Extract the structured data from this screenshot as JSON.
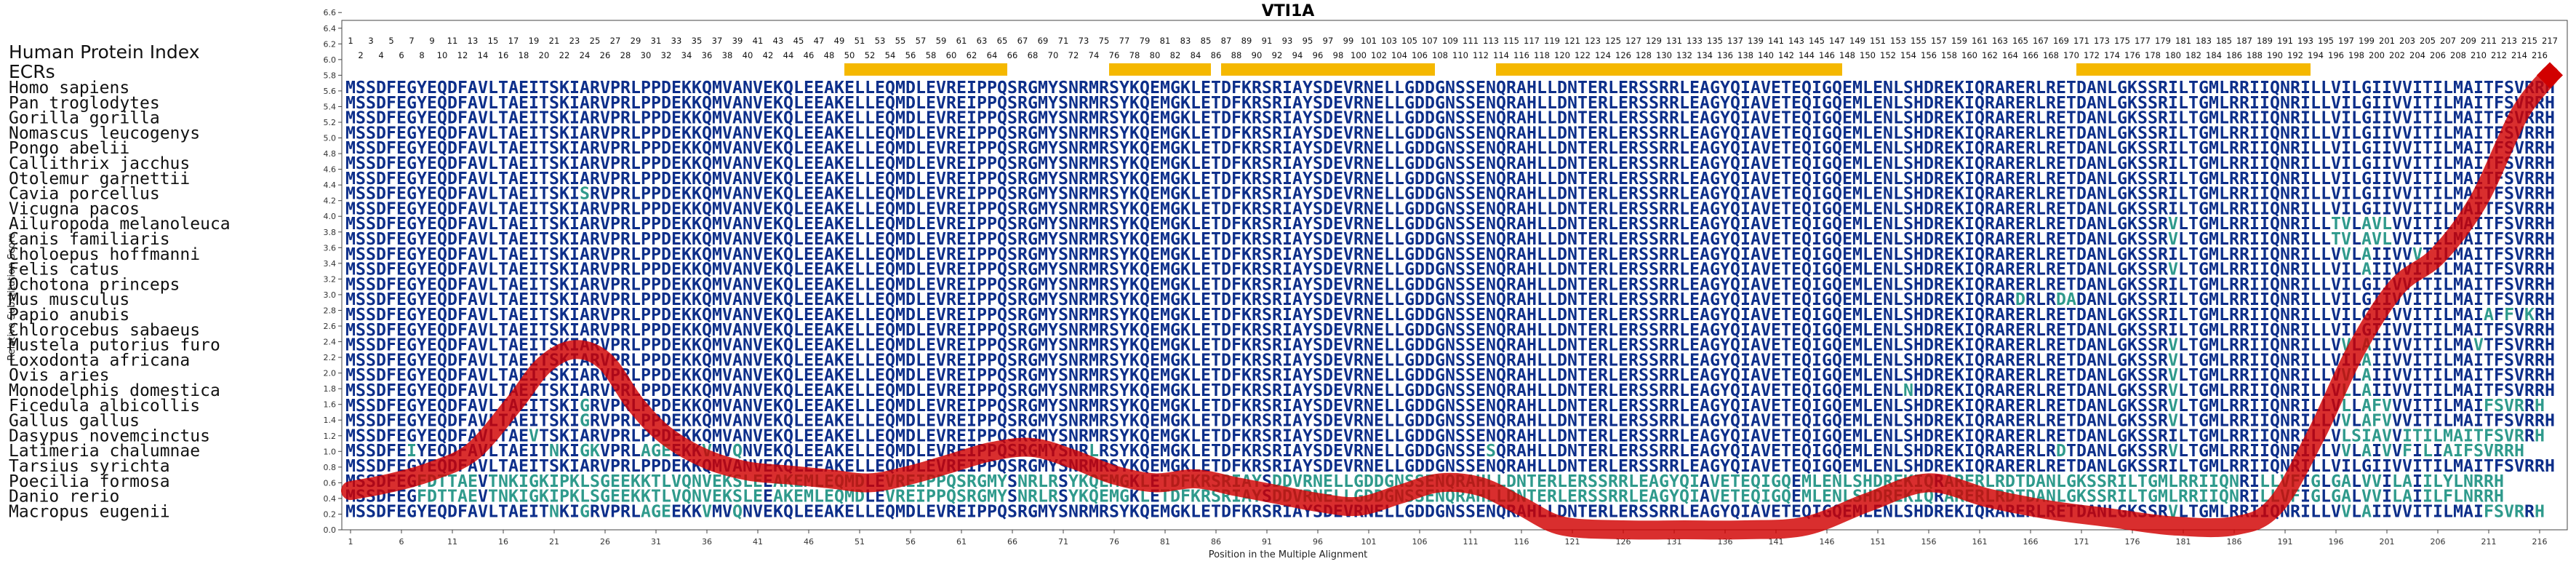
{
  "chart_data": {
    "type": "line",
    "title": "VTI1A",
    "xlabel": "Position in the Multiple Alignment",
    "ylabel": "Relative Substitution Score",
    "xlim": [
      0,
      219
    ],
    "ylim": [
      0,
      6.5
    ],
    "yticks": [
      "0.0",
      "0.2",
      "0.4",
      "0.6",
      "0.8",
      "1.0",
      "1.2",
      "1.4",
      "1.6",
      "1.8",
      "2.0",
      "2.2",
      "2.4",
      "2.6",
      "2.8",
      "3.0",
      "3.2",
      "3.4",
      "3.6",
      "3.8",
      "4.0",
      "4.2",
      "4.4",
      "4.6",
      "4.8",
      "5.0",
      "5.2",
      "5.4",
      "5.6",
      "5.8",
      "6.0",
      "6.2",
      "6.4",
      "6.6"
    ],
    "xticks": [
      1,
      6,
      11,
      16,
      21,
      26,
      31,
      36,
      41,
      46,
      51,
      56,
      61,
      66,
      71,
      76,
      81,
      86,
      91,
      96,
      101,
      106,
      111,
      116,
      121,
      126,
      131,
      136,
      141,
      146,
      151,
      156,
      161,
      166,
      171,
      176,
      181,
      186,
      191,
      196,
      201,
      206,
      211,
      216
    ],
    "grid": false,
    "line_color": "#d10000",
    "series": [
      {
        "x": [
          1,
          5,
          9,
          13,
          17,
          20,
          23,
          26,
          29,
          32,
          36,
          40,
          44,
          48,
          52,
          56,
          60,
          64,
          68,
          72,
          76,
          80,
          84,
          88,
          92,
          96,
          100,
          104,
          108,
          112,
          116,
          120,
          126,
          132,
          138,
          144,
          150,
          156,
          162,
          168,
          174,
          180,
          186,
          190,
          194,
          198,
          202,
          206,
          210,
          214,
          217
        ],
        "y": [
          0.5,
          0.6,
          0.75,
          1.0,
          1.6,
          2.1,
          2.3,
          2.15,
          1.6,
          1.2,
          0.9,
          0.75,
          0.7,
          0.65,
          0.6,
          0.7,
          0.85,
          1.0,
          1.05,
          0.9,
          0.7,
          0.6,
          0.65,
          0.55,
          0.45,
          0.35,
          0.3,
          0.45,
          0.6,
          0.55,
          0.3,
          0.05,
          0.0,
          0.0,
          0.0,
          0.05,
          0.35,
          0.6,
          0.4,
          0.25,
          0.15,
          0.05,
          0.05,
          0.3,
          1.2,
          2.3,
          3.1,
          3.5,
          4.2,
          5.3,
          5.8
        ]
      }
    ],
    "ecr_label": "ECRs",
    "ecr_color": "#f5b800",
    "ecr_ranges": [
      [
        50,
        65
      ],
      [
        76,
        85
      ],
      [
        87,
        107
      ],
      [
        114,
        147
      ],
      [
        171,
        193
      ]
    ],
    "header_label": "Human Protein Index",
    "index_max": 217,
    "species": [
      "Homo sapiens",
      "Pan troglodytes",
      "Gorilla gorilla",
      "Nomascus leucogenys",
      "Pongo abelii",
      "Callithrix jacchus",
      "Otolemur garnettii",
      "Cavia porcellus",
      "Vicugna pacos",
      "Ailuropoda melanoleuca",
      "Canis familiaris",
      "Choloepus hoffmanni",
      "Felis catus",
      "Ochotona princeps",
      "Mus musculus",
      "Papio anubis",
      "Chlorocebus sabaeus",
      "Mustela putorius furo",
      "Loxodonta africana",
      "Ovis aries",
      "Monodelphis domestica",
      "Ficedula albicollis",
      "Gallus gallus",
      "Dasypus novemcinctus",
      "Latimeria chalumnae",
      "Tarsius syrichta",
      "Poecilia formosa",
      "Danio rerio",
      "Macropus eugenii"
    ],
    "sequences": [
      "MSSDFEGYEQDFAVLTAEITSKIARVPRLPPDEKKQMVANVEKQLEEAKELLEQMDLEVREIPPQSRGMYSNRMRSYKQEMGKLETDFKRSRIAYSDEVRNELLGDDGNSSENQRAHLLDNTERLERSSRRLEAGYQIAVETEQIGQEMLENLSHDREKIQRARERLRETDANLGKSSRILTGMLRRIIQNRILLVILGIIVVITILMAITFSVRRH",
      "MSSDFEGYEQDFAVLTAEITSKIARVPRLPPDEKKQMVANVEKQLEEAKELLEQMDLEVREIPPQSRGMYSNRMRSYKQEMGKLETDFKRSRIAYSDEVRNELLGDDGNSSENQRAHLLDNTERLERSSRRLEAGYQIAVETEQIGQEMLENLSHDREKIQRARERLRETDANLGKSSRILTGMLRRIIQNRILLVILGIIVVITILMAITFSVRRH",
      "MSSDFEGYEQDFAVLTAEITSKIARVPRLPPDEKKQMVANVEKQLEEAKELLEQMDLEVREIPPQSRGMYSNRMRSYKQEMGKLETDFKRSRIAYSDEVRNELLGDDGNSSENQRAHLLDNTERLERSSRRLEAGYQIAVETEQIGQEMLENLSHDREKIQRARERLRETDANLGKSSRILTGMLRRIIQNRILLVILGIIVVITILMAITFSVRRH",
      "MSSDFEGYEQDFAVLTAEITSKIARVPRLPPDEKKQMVANVEKQLEEAKELLEQMDLEVREIPPQSRGMYSNRMRSYKQEMGKLETDFKRSRIAYSDEVRNELLGDDGNSSENQRAHLLDNTERLERSSRRLEAGYQIAVETEQIGQEMLENLSHDREKIQRARERLRETDANLGKSSRILTGMLRRIIQNRILLVILGIIVVITILMAITFSVRRH",
      "MSSDFEGYEQDFAVLTAEITSKIARVPRLPPDEKKQMVANVEKQLEEAKELLEQMDLEVREIPPQSRGMYSNRMRSYKQEMGKLETDFKRSRIAYSDEVRNELLGDDGNSSENQRAHLLDNTERLERSSRRLEAGYQIAVETEQIGQEMLENLSHDREKIQRARERLRETDANLGKSSRILTGMLRRIIQNRILLVILGIIVVITILMAITFSVRRH",
      "MSSDFEGYEQDFAVLTAEITSKIARVPRLPPDEKKQMVANVEKQLEEAKELLEQMDLEVREIPPQSRGMYSNRMRSYKQEMGKLETDFKRSRIAYSDEVRNELLGDDGNSSENQRAHLLDNTERLERSSRRLEAGYQIAVETEQIGQEMLENLSHDREKIQRARERLRETDANLGKSSRILTGMLRRIIQNRILLVILGIIVVITILMAITFSVRRH",
      "MSSDFEGYEQDFAVLTAEITSKIARVPRLPPDEKKQMVANVEKQLEEAKELLEQMDLEVREIPPQSRGMYSNRMRSYKQEMGKLETDFKRSRIAYSDEVRNELLGDDGNSSENQRAHLLDNTERLERSSRRLEAGYQIAVETEQIGQEMLENLSHDREKIQRARERLRETDANLGKSSRILTGMLRRIIQNRILLVILGIIVVITILMAITFSVRRH",
      "MSSDFEGYEQDFAVLTAEITSKISRVPRLPPDEKKQMVANVEKQLEEAKELLEQMDLEVREIPPQSRGMYSNRMRSYKQEMGKLETDFKRSRIAYSDEVRNELLGDDGNSSENQRAHLLDNTERLERSSRRLEAGYQIAVETEQIGQEMLENLSHDREKIQRARERLRETDANLGKSSRILTGMLRRIIQNRILLVILGIIVVITILMAITFSVRRH",
      "MSSDFEGYEQDFAVLTAEITSKIARVPRLPPDEKKQMVANVEKQLEEAKELLEQMDLEVREIPPQSRGMYSNRMRSYKQEMGKLETDFKRSRIAYSDEVRNELLGDDGNSSENQRAHLLDNTERLERSSRRLEAGYQIAVETEQIGQEMLENLSHDREKIQRARERLRETDANLGKSSRILTGMLRRIIQNRILLVILGIIVVITILMAITFSVRRH",
      "MSSDFEGYEQDFAVLTAEITSKIARVPRLPPDEKKQMVANVEKQLEEAKELLEQMDLEVREIPPQSRGMYSNRMRSYKQEMGKLETDFKRSRIAYSDEVRNELLGDDGNSSENQRAHLLDNTERLERSSRRLEAGYQIAVETEQIGQEMLENLSHDREKIQRARERLRETDANLGKSSRVLTGMLRRIIQNRILLTVLAVLVVITILMAITFSVRRH",
      "MSSDFEGYEQDFAVLTAEITSKIARVPRLPPDEKKQMVANVEKQLEEAKELLEQMDLEVREIPPQSRGMYSNRMRSYKQEMGKLETDFKRSRIAYSDEVRNELLGDDGNSSENQRAHLLDNTERLERSSRRLEAGYQIAVETEQIGQEMLENLSHDREKIQRARERLRETDANLGKSSRVLTGMLRRIIQNRILLTVLAVLVVITILMAITFSVRRH",
      "MSSDFEGYEQDFAVLTAEITSKIARVPRLPPDEKKQMVANVEKQLEEAKELLEQMDLEVREIPPQSRGMYSNRMRSYKQEMGKLETDFKRSRIAYSDEVRNELLGDDGNSSENQRAHLLDNTERLERSSRRLEAGYQIAVETEQIGQEMLENLSHDREKIQRARERLRETDANLGKSSRILTGMLRRIIQNRILLVVLAIIVVVTILMAITFSVRRH",
      "MSSDFEGYEQDFAVLTAEITSKIARVPRLPPDEKKQMVANVEKQLEEAKELLEQMDLEVREIPPQSRGMYSNRMRSYKQEMGKLETDFKRSRIAYSDEVRNELLGDDGNSSENQRAHLLDNTERLERSSRRLEAGYQIAVETEQIGQEMLENLSHDREKIQRARERLRETDANLGKSSRVLTGMLRRIIQNRILLVILAIIVVITILMAITFSVRRH",
      "MSSDFEGYEQDFAVLTAEITSKIARVPRLPPDEKKQMVANVEKQLEEAKELLEQMDLEVREIPPQSRGMYSNRMRSYKQEMGKLETDFKRSRIAYSDEVRNELLGDDGNSSENQRAHLLDNTERLERSSRRLEAGYQIAVETEQIGQEMLENLSHDREKIQRARERLRETDANLGKSSRILTGMLRRIIQNRILLVILGIIVVITILMAITFSVRRH",
      "MSSDFEGYEQDFAVLTAEITSKIARVPRLPPDEKKQMVANVEKQLEEAKELLEQMDLEVREIPPQSRGMYSNRMRSYKQEMGKLETDFKRSRIAYSDEVRNELLGDDGNSSENQRAHLLDNTERLERSSRRLEAGYQIAVETEQIGQEMLENLSHDREKIQRARDRLRDADANLGKSSRILTGMLRRIIQNRILLVILGIIVVITILMAITFSVRRH",
      "MSSDFEGYEQDFAVLTAEITSKIARVPRLPPDEKKQMVANVEKQLEEAKELLEQMDLEVREIPPQSRGMYSNRMRSYKQEMGKLETDFKRSRIAYSDEVRNELLGDDGNSSENQRAHLLDNTERLERSSRRLEAGYQIAVETEQIGQEMLENLSHDREKIQRARERLRETDANLGKSSRILTGMLRRIIQNRILLVILGIIVVITILMAIAFFVKRH",
      "MSSDFEGYEQDFAVLTAEITSKIARVPRLPPDEKKQMVANVEKQLEEAKELLEQMDLEVREIPPQSRGMYSNRMRSYKQEMGKLETDFKRSRIAYSDEVRNELLGDDGNSSENQRAHLLDNTERLERSSRRLEAGYQIAVETEQIGQEMLENLSHDREKIQRARERLRETDANLGKSSRILTGMLRRIIQNRILLVILGIIVVITILMAITFSVRRH",
      "MSSDFEGYEQDFAVLTAEITSKIARVPRLPPDEKKQMVANVEKQLEEAKELLEQMDLEVREIPPQSRGMYSNRMRSYKQEMGKLETDFKRSRIAYSDEVRNELLGDDGNSSENQRAHLLDNTERLERSSRRLEAGYQIAVETEQIGQEMLENLSHDREKIQRARERLRETDANLGKSSRVLTGMLRRIIQNRILLVVLAIIVVITILMAVTFSVRRH",
      "MSSDFEGYEQDFAVLTAEITSKIARVPRLPPDEKKQMVANVEKQLEEAKELLEQMDLEVREIPPQSRGMYSNRMRSYKQEMGKLETDFKRSRIAYSDEVRNELLGDDGNSSENQRAHLLDNTERLERSSRRLEAGYQIAVETEQIGQEMLENLSHDREKIQRARERLRETDANLGKSSRVLTGMLRRIIQNRILLVILAIIVVITILMAITFSVRRH",
      "MSSDFEGYEQDFAVLTAEITSKIARVPRLPPDEKKQMVANVEKQLEEAKELLEQMDLEVREIPPQSRGMYSNRMRSYKQEMGKLETDFKRSRIAYSDEVRNELLGDDGNSSENQRAHLLDNTERLERSSRRLEAGYQIAVETEQIGQEMLENLSHDREKIQRARERLRETDANLGKSSRVLTGMLRRIIQNRILLVVLAIIVVITILMAITFSVRRH",
      "MSSDFEGYEQDFAVLTAEITSKIARVPRLPPDEKKQMVANVEKQLEEAKELLEQMDLEVREIPPQSRGMYSNRMRSYKQEMGKLETDFKRSRIAYSDEVRNELLGDDGNSSENQRAHLLDNTERLERSSRRLEAGYQIAVETEQIGQEMLENLNHDREKIQRARERLRETDANLGKSSRVLTGMLRRIIQNRILLVLLAIIVVITILMAITFSVRRH",
      "MSSDFEGYEQDFAVLTAEITSKIGRVPRLPPDEKKQMVANVEKQLEEAKELLEQMDLEVREIPPQSRGMYSNRMRSYKQEMGKLETDFKRSRIAYSDEVRNELLGDDGNSSENQRAHLLDNTERLERSSRRLEAGYQIAVETEQIGQEMLENLSHDREKIQRARERLRETDANLGKSSRVLTGMLRRIIQNRILLVLLAFVVVITILMAIFSVRRH",
      "MSSDFEGYEQDFAVLTAEITSKIGRVPRLPPDEKKQMVANVEKQLEEAKELLEQMDLEVREIPPQSRGMYSNRMRSYKQEMGKLETDFKRSRIAYSDEVRNELLGDDGNSSENQRAHLLDNTERLERSSRRLEAGYQIAVETEQIGQEMLENLSHDREKIQRARERLRETDANLGKSSRVLTGMLRRIIQNRILLVVLAFVVVITILMAITFSVRRH",
      "MSSDFEGYEQDFAVLTAEVTSKIARVPRLPPDEKKQMVANVEKQLEEAKELLEQMDLEVREIPPQSRGMYSNRMRSYKQEMGKLETDFKRSRIAYSDEVRNELLGDDGNSSENQRAHLLDNTERLERSSRRLEAGYQIAVETEQIGQEMLENLSHDREKIQRARERLRETDANLGKSSRILTGMLRRIIQNRILLVLSIAVVITILMAITFSVRRH",
      "MSSDFEIYEQDFAVLTAEITNKIGKVPRLAGEEKKVMVQNVEKQLEEAKELLEQMDLEVREIPPQSRGMYSNRLRSYKQEMGKLETDFKRSRIAYSDEVRNELLGDDGNSSESQRAHLLDNTERLERSSRRLEAGYQIAVETEQIGQEMLENLSHDREKIQRARERLRDTDANLGKSSRVLTGMLRRIIQNRILLVVLAIVVFILIAIFSVRRH",
      "MSSDFEGYEQDFAVLTAEITSKIARVPRLPPDEKKQMVANVEKQLEEAKELLEQMDLEVREIPPQSRGMYSNRMRSYKQEMGKLETDFKRSRIAYSDEVRNELLGDDGNSSENQRAHLLDNTERLERSSRRLEAGYQIAVETEQIGQEMLENLSHDREKIQRARERLRETDANLGKSSRILTGMLRRIIQNRILLVILGIIVVITILMAITFSVRRH",
      "MSSDFEGFDTTAEVTNKIGKIPKLSGEEKKTLVQNVEKSLEEAKEMLEQMDLEVREIPPQSRGMYSNRLRSYKQEMGKLETDFKRSRIAYSDDVRNELLGDDGNSSENQRAHLLDNTERLERSSRRLEAGYQIAVETEQIGQEMLENLSHDREKIQRARERLRDTDANLGKSSRILTGMLRRIIQNRILLVFIGLGALVVILAIILYLNRRH",
      "MSSDFEGFDTTAEVTNKIGKIPKLSGEEKKTLVQNVEKSLEEAKEMLEQMDLEVREIPPQSRGMYSNRLRSYKQEMGKLETDFKRSRIAYSDDVRNELLGDDGNSSENQRAHLLDNTERLERSSRRLEAGYQIAVETEQIGQEMLENLSHDREKIQRARERLRDTDANLGKSSRILTGMLRRIIQNRILLVFIGLGALVVILAIILFLNRRH",
      "MSSDFEGYEQDFAVLTAEITNKIGRVPRLAGEEKKVMVQNVEKQLEEAKELLEQMDLEVREIPPQSRGMYSNRMRSYKQEMGKLETDFKRSRIAYSDEVRNELLGDDGNSSENQRAHLLDNTERLERSSRRLEAGYQIAVETEQIGQEMLENLSHDREKIQRARERLRETDANLGKSSRVLTGMLRRIIQNRILLVVLAIIVVITILMAIFSVRRH"
    ]
  }
}
